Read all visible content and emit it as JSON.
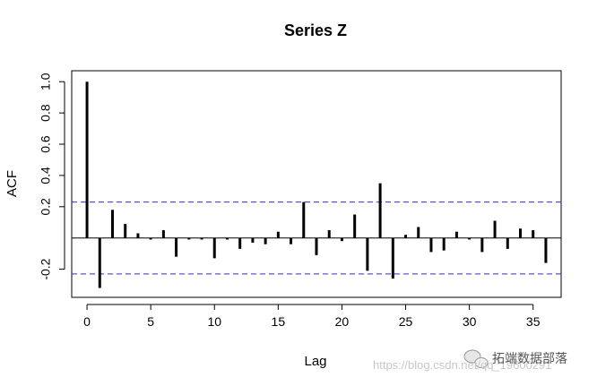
{
  "chart_data": {
    "type": "bar",
    "title": "Series  Z",
    "xlabel": "Lag",
    "ylabel": "ACF",
    "xlim": [
      -1.2,
      37.2
    ],
    "ylim": [
      -0.38,
      1.07
    ],
    "x_ticks": [
      0,
      5,
      10,
      15,
      20,
      25,
      30,
      35
    ],
    "y_ticks": [
      -0.2,
      0.2,
      0.4,
      0.6,
      0.8,
      1.0
    ],
    "y_tick_labels": [
      "-0.2",
      "0.2",
      "0.4",
      "0.6",
      "0.8",
      "1.0"
    ],
    "confidence_band": 0.23,
    "lags": [
      0,
      1,
      2,
      3,
      4,
      5,
      6,
      7,
      8,
      9,
      10,
      11,
      12,
      13,
      14,
      15,
      16,
      17,
      18,
      19,
      20,
      21,
      22,
      23,
      24,
      25,
      26,
      27,
      28,
      29,
      30,
      31,
      32,
      33,
      34,
      35,
      36
    ],
    "values": [
      1.0,
      -0.32,
      0.18,
      0.09,
      0.03,
      -0.01,
      0.05,
      -0.12,
      -0.01,
      -0.01,
      -0.13,
      -0.01,
      -0.07,
      -0.03,
      -0.04,
      0.04,
      -0.04,
      0.23,
      -0.11,
      0.05,
      -0.02,
      0.15,
      -0.21,
      0.35,
      -0.26,
      0.02,
      0.07,
      -0.09,
      -0.08,
      0.04,
      -0.01,
      -0.09,
      0.11,
      -0.07,
      0.06,
      0.05,
      -0.16
    ]
  },
  "watermark": {
    "url": "https://blog.csdn.net/qq_19600291",
    "brand": "拓端数据部落",
    "icon": "wechat-icon"
  }
}
